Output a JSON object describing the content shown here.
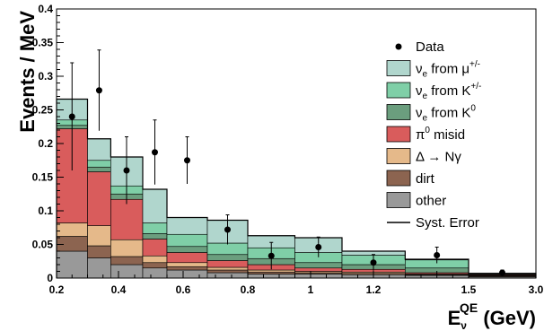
{
  "chart_data": {
    "type": "stacked-histogram",
    "ylabel": "Events / MeV",
    "xlabel": {
      "main": "E",
      "sub": "ν",
      "sup": "QE",
      "unit": " (GeV)"
    },
    "xlim": [
      0.2,
      3.0
    ],
    "ylim": [
      0,
      0.4
    ],
    "bins": [
      [
        0.2,
        0.3
      ],
      [
        0.3,
        0.375
      ],
      [
        0.375,
        0.475
      ],
      [
        0.475,
        0.55
      ],
      [
        0.55,
        0.675
      ],
      [
        0.675,
        0.8
      ],
      [
        0.8,
        0.95
      ],
      [
        0.95,
        1.1
      ],
      [
        1.1,
        1.3
      ],
      [
        1.3,
        1.5
      ],
      [
        1.5,
        3.0
      ]
    ],
    "x_ticks": [
      {
        "v": 0.2,
        "label": "0.2"
      },
      {
        "v": 0.4,
        "label": "0.4"
      },
      {
        "v": 0.6,
        "label": "0.6"
      },
      {
        "v": 0.8,
        "label": "0.8"
      },
      {
        "v": 1.0,
        "label": "1"
      },
      {
        "v": 1.2,
        "label": "1.2"
      },
      {
        "v": 1.5,
        "label": "1.5"
      },
      {
        "v": 3.0,
        "label": "3.0"
      }
    ],
    "y_ticks": [
      {
        "v": 0,
        "label": "0"
      },
      {
        "v": 0.05,
        "label": "0.05"
      },
      {
        "v": 0.1,
        "label": "0.1"
      },
      {
        "v": 0.15,
        "label": "0.15"
      },
      {
        "v": 0.2,
        "label": "0.2"
      },
      {
        "v": 0.25,
        "label": "0.25"
      },
      {
        "v": 0.3,
        "label": "0.3"
      },
      {
        "v": 0.35,
        "label": "0.35"
      },
      {
        "v": 0.4,
        "label": "0.4"
      }
    ],
    "stack_order_bottom_to_top": [
      "other",
      "dirt",
      "delta",
      "pi0",
      "k0",
      "kpm",
      "mu"
    ],
    "series": [
      {
        "key": "other",
        "color": "#999999",
        "values": [
          0.04,
          0.03,
          0.02,
          0.015,
          0.012,
          0.008,
          0.006,
          0.006,
          0.005,
          0.004,
          0.002
        ]
      },
      {
        "key": "dirt",
        "color": "#8c6450",
        "values": [
          0.022,
          0.018,
          0.012,
          0.008,
          0.005,
          0.004,
          0.003,
          0.002,
          0.002,
          0.001,
          0.001
        ]
      },
      {
        "key": "delta",
        "color": "#e5b98a",
        "values": [
          0.02,
          0.03,
          0.025,
          0.01,
          0.006,
          0.004,
          0.003,
          0.002,
          0.002,
          0.001,
          0.001
        ]
      },
      {
        "key": "pi0",
        "color": "#d95c5c",
        "values": [
          0.14,
          0.08,
          0.06,
          0.025,
          0.015,
          0.01,
          0.008,
          0.005,
          0.004,
          0.002,
          0.001
        ]
      },
      {
        "key": "k0",
        "color": "#6b9e7e",
        "values": [
          0.005,
          0.007,
          0.008,
          0.008,
          0.009,
          0.009,
          0.009,
          0.008,
          0.007,
          0.007,
          0.001
        ]
      },
      {
        "key": "kpm",
        "color": "#7fcfa7",
        "values": [
          0.008,
          0.01,
          0.012,
          0.016,
          0.018,
          0.017,
          0.016,
          0.015,
          0.014,
          0.012,
          0.001
        ]
      },
      {
        "key": "mu",
        "color": "#b0d6cd",
        "values": [
          0.031,
          0.032,
          0.043,
          0.05,
          0.025,
          0.034,
          0.018,
          0.022,
          0.006,
          0.001,
          0.0
        ]
      }
    ],
    "total_line_color": "#000000",
    "data_points": [
      {
        "x": 0.25,
        "y": 0.24,
        "err": 0.08
      },
      {
        "x": 0.3375,
        "y": 0.279,
        "err": 0.06
      },
      {
        "x": 0.425,
        "y": 0.16,
        "err": 0.05
      },
      {
        "x": 0.5125,
        "y": 0.187,
        "err": 0.048
      },
      {
        "x": 0.6125,
        "y": 0.175,
        "err": 0.035
      },
      {
        "x": 0.7375,
        "y": 0.072,
        "err": 0.022
      },
      {
        "x": 0.875,
        "y": 0.033,
        "err": 0.02
      },
      {
        "x": 1.025,
        "y": 0.046,
        "err": 0.015
      },
      {
        "x": 1.2,
        "y": 0.023,
        "err": 0.012
      },
      {
        "x": 1.4,
        "y": 0.034,
        "err": 0.012
      },
      {
        "x": 2.25,
        "y": 0.008,
        "err": 0.004
      }
    ],
    "legend": {
      "placement": "top-right",
      "items": [
        {
          "kind": "marker",
          "text": "Data"
        },
        {
          "kind": "box",
          "key": "mu",
          "main": "ν",
          "sub": "e",
          "rest": " from μ",
          "sup": "+/-"
        },
        {
          "kind": "box",
          "key": "kpm",
          "main": "ν",
          "sub": "e",
          "rest": " from K",
          "sup": "+/-"
        },
        {
          "kind": "box",
          "key": "k0",
          "main": "ν",
          "sub": "e",
          "rest": " from K",
          "sup": "0"
        },
        {
          "kind": "box",
          "key": "pi0",
          "main": "π",
          "sup": "0",
          "rest2": " misid"
        },
        {
          "kind": "box",
          "key": "delta",
          "text": "Δ → Nγ"
        },
        {
          "kind": "box",
          "key": "dirt",
          "text": "dirt"
        },
        {
          "kind": "box",
          "key": "other",
          "text": "other"
        },
        {
          "kind": "line",
          "text": "Syst. Error"
        }
      ]
    }
  }
}
